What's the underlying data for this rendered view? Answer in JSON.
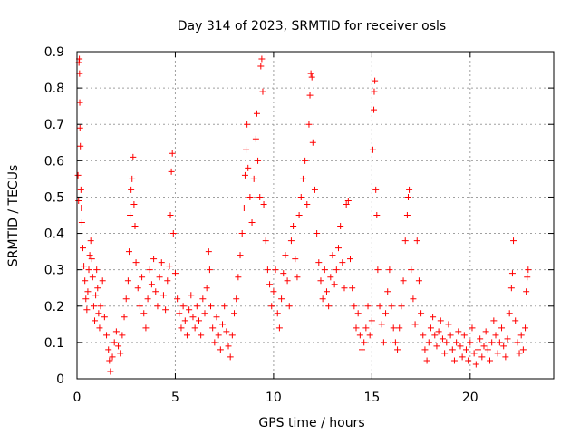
{
  "chart_data": {
    "type": "scatter",
    "title": "Day 314 of 2023, SRMTID for receiver osls",
    "xlabel": "GPS time / hours",
    "ylabel": "SRMTID / TECUs",
    "xlim": [
      0,
      24.25
    ],
    "ylim": [
      0,
      0.9
    ],
    "xticks": [
      0,
      5,
      10,
      15,
      20
    ],
    "yticks": [
      0,
      0.1,
      0.2,
      0.3,
      0.4,
      0.5,
      0.6,
      0.7,
      0.8,
      0.9
    ],
    "xtick_labels": [
      "0",
      "5",
      "10",
      "15",
      "20"
    ],
    "ytick_labels": [
      "0",
      "0.1",
      "0.2",
      "0.3",
      "0.4",
      "0.5",
      "0.6",
      "0.7",
      "0.8",
      "0.9"
    ],
    "grid": true,
    "marker": "+",
    "color": "#ff0000",
    "series": [
      {
        "name": "SRMTID",
        "points": [
          [
            0.05,
            0.56
          ],
          [
            0.08,
            0.49
          ],
          [
            0.1,
            0.87
          ],
          [
            0.12,
            0.88
          ],
          [
            0.13,
            0.84
          ],
          [
            0.14,
            0.76
          ],
          [
            0.15,
            0.69
          ],
          [
            0.17,
            0.64
          ],
          [
            0.2,
            0.52
          ],
          [
            0.22,
            0.47
          ],
          [
            0.25,
            0.43
          ],
          [
            0.3,
            0.36
          ],
          [
            0.35,
            0.31
          ],
          [
            0.4,
            0.27
          ],
          [
            0.45,
            0.22
          ],
          [
            0.5,
            0.19
          ],
          [
            0.55,
            0.24
          ],
          [
            0.6,
            0.3
          ],
          [
            0.65,
            0.34
          ],
          [
            0.7,
            0.38
          ],
          [
            0.75,
            0.33
          ],
          [
            0.8,
            0.28
          ],
          [
            0.85,
            0.2
          ],
          [
            0.9,
            0.16
          ],
          [
            0.95,
            0.23
          ],
          [
            1.0,
            0.3
          ],
          [
            1.05,
            0.25
          ],
          [
            1.1,
            0.18
          ],
          [
            1.15,
            0.14
          ],
          [
            1.2,
            0.2
          ],
          [
            1.3,
            0.27
          ],
          [
            1.4,
            0.17
          ],
          [
            1.5,
            0.12
          ],
          [
            1.6,
            0.08
          ],
          [
            1.65,
            0.05
          ],
          [
            1.7,
            0.02
          ],
          [
            1.8,
            0.06
          ],
          [
            1.9,
            0.1
          ],
          [
            2.0,
            0.13
          ],
          [
            2.1,
            0.09
          ],
          [
            2.2,
            0.07
          ],
          [
            2.3,
            0.12
          ],
          [
            2.4,
            0.17
          ],
          [
            2.5,
            0.22
          ],
          [
            2.6,
            0.27
          ],
          [
            2.65,
            0.35
          ],
          [
            2.7,
            0.45
          ],
          [
            2.75,
            0.52
          ],
          [
            2.8,
            0.55
          ],
          [
            2.85,
            0.61
          ],
          [
            2.9,
            0.48
          ],
          [
            2.95,
            0.42
          ],
          [
            3.0,
            0.32
          ],
          [
            3.1,
            0.25
          ],
          [
            3.2,
            0.2
          ],
          [
            3.3,
            0.28
          ],
          [
            3.4,
            0.18
          ],
          [
            3.5,
            0.14
          ],
          [
            3.6,
            0.22
          ],
          [
            3.7,
            0.3
          ],
          [
            3.8,
            0.26
          ],
          [
            3.9,
            0.33
          ],
          [
            4.0,
            0.24
          ],
          [
            4.1,
            0.2
          ],
          [
            4.2,
            0.28
          ],
          [
            4.3,
            0.32
          ],
          [
            4.4,
            0.23
          ],
          [
            4.5,
            0.19
          ],
          [
            4.6,
            0.27
          ],
          [
            4.7,
            0.31
          ],
          [
            4.75,
            0.45
          ],
          [
            4.8,
            0.57
          ],
          [
            4.85,
            0.62
          ],
          [
            4.9,
            0.4
          ],
          [
            5.0,
            0.29
          ],
          [
            5.1,
            0.22
          ],
          [
            5.2,
            0.18
          ],
          [
            5.3,
            0.14
          ],
          [
            5.4,
            0.2
          ],
          [
            5.5,
            0.16
          ],
          [
            5.6,
            0.12
          ],
          [
            5.7,
            0.19
          ],
          [
            5.8,
            0.23
          ],
          [
            5.9,
            0.17
          ],
          [
            6.0,
            0.14
          ],
          [
            6.1,
            0.2
          ],
          [
            6.2,
            0.16
          ],
          [
            6.3,
            0.12
          ],
          [
            6.4,
            0.22
          ],
          [
            6.5,
            0.18
          ],
          [
            6.6,
            0.25
          ],
          [
            6.7,
            0.35
          ],
          [
            6.75,
            0.3
          ],
          [
            6.8,
            0.2
          ],
          [
            6.9,
            0.14
          ],
          [
            7.0,
            0.1
          ],
          [
            7.1,
            0.17
          ],
          [
            7.2,
            0.12
          ],
          [
            7.3,
            0.08
          ],
          [
            7.4,
            0.15
          ],
          [
            7.5,
            0.2
          ],
          [
            7.6,
            0.13
          ],
          [
            7.7,
            0.09
          ],
          [
            7.8,
            0.06
          ],
          [
            7.9,
            0.12
          ],
          [
            8.0,
            0.18
          ],
          [
            8.1,
            0.22
          ],
          [
            8.2,
            0.28
          ],
          [
            8.3,
            0.34
          ],
          [
            8.4,
            0.4
          ],
          [
            8.5,
            0.47
          ],
          [
            8.55,
            0.56
          ],
          [
            8.6,
            0.63
          ],
          [
            8.65,
            0.7
          ],
          [
            8.7,
            0.58
          ],
          [
            8.8,
            0.5
          ],
          [
            8.9,
            0.43
          ],
          [
            9.0,
            0.55
          ],
          [
            9.1,
            0.66
          ],
          [
            9.15,
            0.73
          ],
          [
            9.2,
            0.6
          ],
          [
            9.3,
            0.5
          ],
          [
            9.35,
            0.86
          ],
          [
            9.4,
            0.88
          ],
          [
            9.45,
            0.79
          ],
          [
            9.5,
            0.48
          ],
          [
            9.6,
            0.38
          ],
          [
            9.7,
            0.3
          ],
          [
            9.8,
            0.26
          ],
          [
            9.9,
            0.2
          ],
          [
            10.0,
            0.24
          ],
          [
            10.1,
            0.3
          ],
          [
            10.2,
            0.18
          ],
          [
            10.3,
            0.14
          ],
          [
            10.4,
            0.22
          ],
          [
            10.5,
            0.29
          ],
          [
            10.6,
            0.34
          ],
          [
            10.7,
            0.27
          ],
          [
            10.8,
            0.2
          ],
          [
            10.9,
            0.38
          ],
          [
            11.0,
            0.42
          ],
          [
            11.1,
            0.33
          ],
          [
            11.2,
            0.28
          ],
          [
            11.3,
            0.45
          ],
          [
            11.4,
            0.5
          ],
          [
            11.5,
            0.55
          ],
          [
            11.6,
            0.6
          ],
          [
            11.7,
            0.48
          ],
          [
            11.8,
            0.7
          ],
          [
            11.85,
            0.78
          ],
          [
            11.9,
            0.84
          ],
          [
            11.95,
            0.83
          ],
          [
            12.0,
            0.65
          ],
          [
            12.1,
            0.52
          ],
          [
            12.2,
            0.4
          ],
          [
            12.3,
            0.32
          ],
          [
            12.4,
            0.27
          ],
          [
            12.5,
            0.22
          ],
          [
            12.6,
            0.3
          ],
          [
            12.7,
            0.24
          ],
          [
            12.8,
            0.2
          ],
          [
            12.9,
            0.28
          ],
          [
            13.0,
            0.34
          ],
          [
            13.1,
            0.26
          ],
          [
            13.2,
            0.3
          ],
          [
            13.3,
            0.36
          ],
          [
            13.4,
            0.42
          ],
          [
            13.5,
            0.32
          ],
          [
            13.6,
            0.25
          ],
          [
            13.7,
            0.48
          ],
          [
            13.8,
            0.49
          ],
          [
            13.9,
            0.33
          ],
          [
            14.0,
            0.25
          ],
          [
            14.1,
            0.2
          ],
          [
            14.2,
            0.14
          ],
          [
            14.3,
            0.18
          ],
          [
            14.4,
            0.12
          ],
          [
            14.5,
            0.08
          ],
          [
            14.6,
            0.1
          ],
          [
            14.7,
            0.14
          ],
          [
            14.8,
            0.2
          ],
          [
            14.9,
            0.12
          ],
          [
            15.0,
            0.16
          ],
          [
            15.05,
            0.63
          ],
          [
            15.1,
            0.74
          ],
          [
            15.12,
            0.79
          ],
          [
            15.15,
            0.82
          ],
          [
            15.2,
            0.52
          ],
          [
            15.25,
            0.45
          ],
          [
            15.3,
            0.3
          ],
          [
            15.4,
            0.2
          ],
          [
            15.5,
            0.15
          ],
          [
            15.6,
            0.1
          ],
          [
            15.7,
            0.18
          ],
          [
            15.8,
            0.24
          ],
          [
            15.9,
            0.3
          ],
          [
            16.0,
            0.2
          ],
          [
            16.1,
            0.14
          ],
          [
            16.2,
            0.1
          ],
          [
            16.3,
            0.08
          ],
          [
            16.4,
            0.14
          ],
          [
            16.5,
            0.2
          ],
          [
            16.6,
            0.27
          ],
          [
            16.7,
            0.38
          ],
          [
            16.8,
            0.45
          ],
          [
            16.85,
            0.5
          ],
          [
            16.9,
            0.52
          ],
          [
            17.0,
            0.3
          ],
          [
            17.1,
            0.22
          ],
          [
            17.2,
            0.15
          ],
          [
            17.3,
            0.38
          ],
          [
            17.4,
            0.27
          ],
          [
            17.5,
            0.18
          ],
          [
            17.6,
            0.12
          ],
          [
            17.7,
            0.08
          ],
          [
            17.8,
            0.05
          ],
          [
            17.9,
            0.1
          ],
          [
            18.0,
            0.14
          ],
          [
            18.1,
            0.17
          ],
          [
            18.2,
            0.12
          ],
          [
            18.3,
            0.09
          ],
          [
            18.4,
            0.13
          ],
          [
            18.5,
            0.16
          ],
          [
            18.6,
            0.11
          ],
          [
            18.7,
            0.07
          ],
          [
            18.8,
            0.1
          ],
          [
            18.9,
            0.15
          ],
          [
            19.0,
            0.12
          ],
          [
            19.1,
            0.08
          ],
          [
            19.2,
            0.05
          ],
          [
            19.3,
            0.1
          ],
          [
            19.4,
            0.13
          ],
          [
            19.5,
            0.09
          ],
          [
            19.6,
            0.06
          ],
          [
            19.7,
            0.12
          ],
          [
            19.8,
            0.08
          ],
          [
            19.9,
            0.05
          ],
          [
            20.0,
            0.1
          ],
          [
            20.1,
            0.14
          ],
          [
            20.2,
            0.07
          ],
          [
            20.3,
            0.04
          ],
          [
            20.4,
            0.08
          ],
          [
            20.5,
            0.11
          ],
          [
            20.6,
            0.06
          ],
          [
            20.7,
            0.09
          ],
          [
            20.8,
            0.13
          ],
          [
            20.9,
            0.08
          ],
          [
            21.0,
            0.05
          ],
          [
            21.1,
            0.1
          ],
          [
            21.2,
            0.16
          ],
          [
            21.3,
            0.12
          ],
          [
            21.4,
            0.07
          ],
          [
            21.5,
            0.1
          ],
          [
            21.6,
            0.14
          ],
          [
            21.7,
            0.09
          ],
          [
            21.8,
            0.06
          ],
          [
            21.9,
            0.11
          ],
          [
            22.0,
            0.18
          ],
          [
            22.1,
            0.25
          ],
          [
            22.15,
            0.29
          ],
          [
            22.2,
            0.38
          ],
          [
            22.3,
            0.16
          ],
          [
            22.4,
            0.1
          ],
          [
            22.5,
            0.07
          ],
          [
            22.6,
            0.12
          ],
          [
            22.7,
            0.08
          ],
          [
            22.8,
            0.14
          ],
          [
            22.85,
            0.24
          ],
          [
            22.9,
            0.28
          ],
          [
            22.95,
            0.3
          ]
        ]
      }
    ]
  }
}
